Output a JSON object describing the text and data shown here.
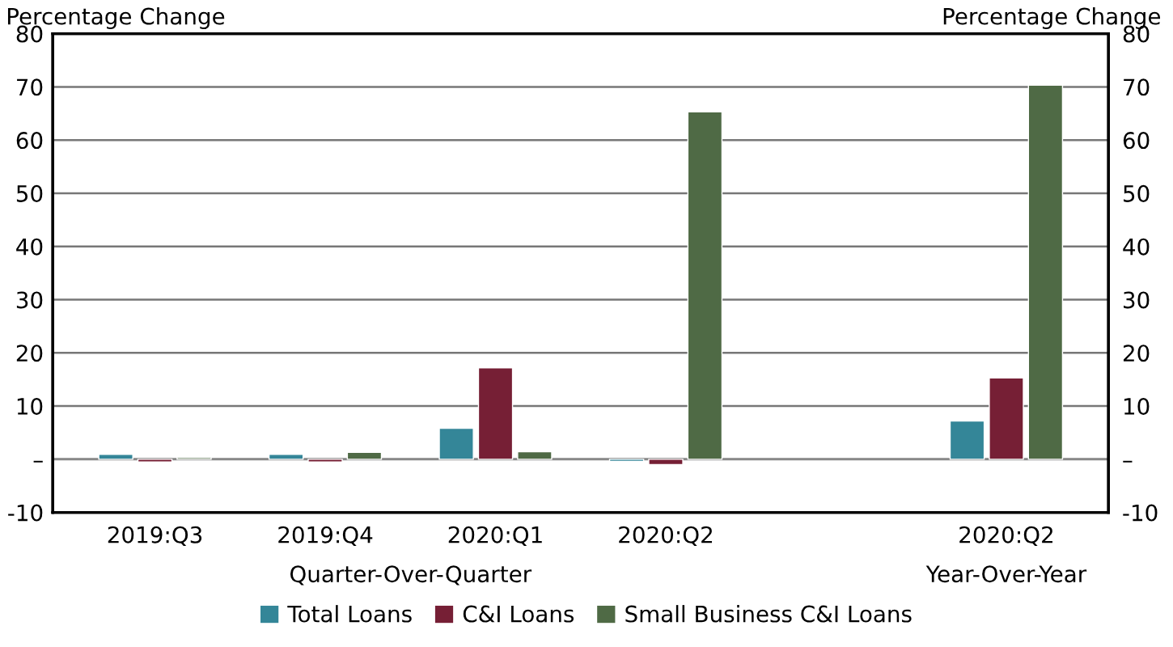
{
  "chart_data": {
    "type": "bar",
    "ylabel": "Percentage Change",
    "y2label": "Percentage Change",
    "annotations": [
      "Quarter-Over-Quarter",
      "Year-Over-Year"
    ],
    "categories": [
      "2019:Q3",
      "2019:Q4",
      "2020:Q1",
      "2020:Q2",
      null,
      "2020:Q2"
    ],
    "series": [
      {
        "name": "Total Loans",
        "color": "#348698",
        "values": [
          0.9,
          0.9,
          5.8,
          -0.4,
          null,
          7.2
        ]
      },
      {
        "name": "C&I Loans",
        "color": "#761f35",
        "values": [
          -0.5,
          -0.5,
          17.2,
          -1.0,
          null,
          15.3
        ]
      },
      {
        "name": "Small Business C&I Loans",
        "color": "#4f6a45",
        "values": [
          0.3,
          1.3,
          1.4,
          65.3,
          null,
          70.3
        ]
      }
    ],
    "ylim": [
      -10,
      80
    ],
    "yticks": [
      -10,
      {
        "value": 0,
        "label": "–"
      },
      10,
      20,
      30,
      40,
      50,
      60,
      70,
      80
    ],
    "y2lim": [
      -10,
      80
    ],
    "y2ticks": [
      -10,
      {
        "value": 0,
        "label": "–"
      },
      10,
      20,
      30,
      40,
      50,
      60,
      70,
      80
    ],
    "grid": "y",
    "legend": "bottom"
  }
}
